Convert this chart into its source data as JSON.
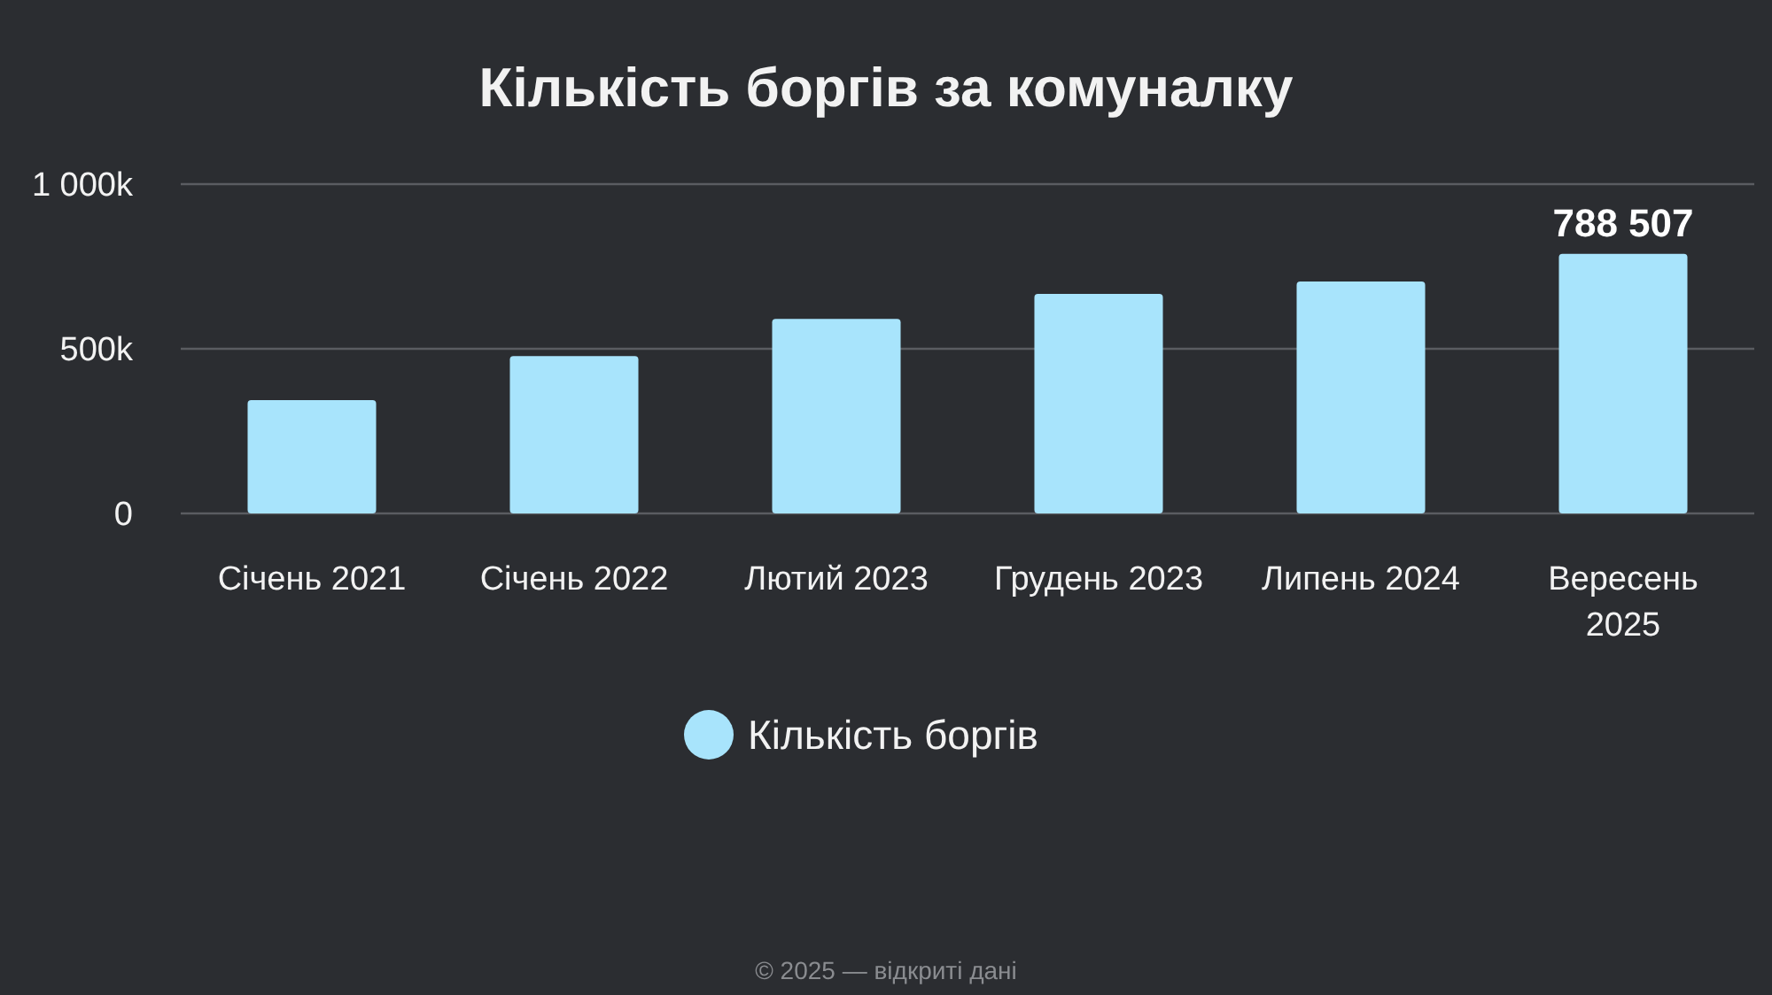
{
  "chart_data": {
    "type": "bar",
    "title": "Кількість боргів за комуналку",
    "categories": [
      "Січень 2021",
      "Січень 2022",
      "Лютий 2023",
      "Грудень 2023",
      "Липень 2024",
      "Вересень 2025"
    ],
    "series": [
      {
        "name": "Кількість боргів",
        "color": "#a8e4fc",
        "values": [
          344000,
          478000,
          591000,
          667000,
          704000,
          788507
        ],
        "value_labels": [
          null,
          null,
          null,
          null,
          null,
          "788 507"
        ]
      }
    ],
    "ylim": [
      0,
      1000000
    ],
    "yticks": [
      0,
      {
        "value": 500000,
        "label": "500k"
      },
      {
        "value": 1000000,
        "label": "1 000k"
      }
    ],
    "grid": "y",
    "legend": "bottom",
    "annotations": [
      "© 2025 — відкриті дані"
    ]
  }
}
